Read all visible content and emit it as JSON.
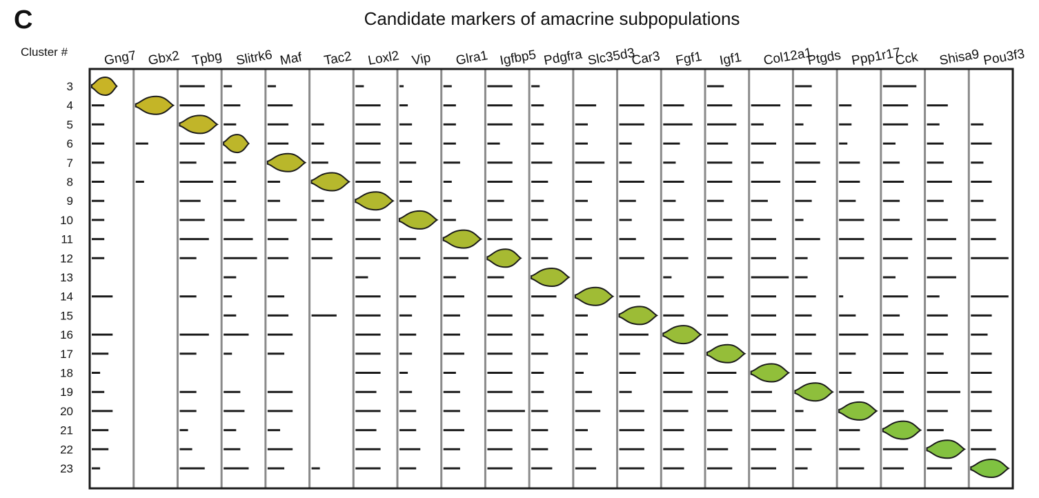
{
  "panel_letter": "C",
  "cluster_heading": "Cluster #",
  "colors": {
    "violin_start": "#c8b426",
    "violin_end": "#7fc241",
    "line": "#1a1a1a",
    "separator": "#8a8a8a",
    "frame": "#1a1a1a"
  },
  "chart_data": {
    "type": "violin",
    "title": "Candidate markers of amacrine subpopulations",
    "genes": [
      "Gng7",
      "Gbx2",
      "Tpbg",
      "Slitrk6",
      "Maf",
      "Tac2",
      "Loxl2",
      "Vip",
      "Glra1",
      "Igfbp5",
      "Pdgfra",
      "Slc35d3",
      "Car3",
      "Fgf1",
      "Igf1",
      "Col12a1",
      "Ptgds",
      "Ppp1r17",
      "Cck",
      "Shisa9",
      "Pou3f3"
    ],
    "clusters": [
      "3",
      "4",
      "5",
      "6",
      "7",
      "8",
      "9",
      "10",
      "11",
      "12",
      "13",
      "14",
      "15",
      "16",
      "17",
      "18",
      "19",
      "20",
      "21",
      "22",
      "23"
    ],
    "expression": [
      [
        0.6,
        0.0,
        0.6,
        0.2,
        0.2,
        0.0,
        0.2,
        0.1,
        0.2,
        0.6,
        0.2,
        0.0,
        0.0,
        0.0,
        0.4,
        0.0,
        0.4,
        0.0,
        0.8,
        0.0,
        0.0
      ],
      [
        0.3,
        0.9,
        0.6,
        0.4,
        0.6,
        0.0,
        0.6,
        0.2,
        0.3,
        0.6,
        0.3,
        0.5,
        0.6,
        0.5,
        0.6,
        0.7,
        0.4,
        0.3,
        0.6,
        0.5,
        0.0
      ],
      [
        0.3,
        0.0,
        0.9,
        0.3,
        0.5,
        0.3,
        0.6,
        0.3,
        0.3,
        0.6,
        0.3,
        0.3,
        0.6,
        0.7,
        0.7,
        0.3,
        0.2,
        0.3,
        0.6,
        0.3,
        0.3
      ],
      [
        0.3,
        0.3,
        0.6,
        0.6,
        0.5,
        0.3,
        0.6,
        0.3,
        0.3,
        0.3,
        0.3,
        0.3,
        0.3,
        0.4,
        0.5,
        0.6,
        0.5,
        0.2,
        0.3,
        0.4,
        0.5
      ],
      [
        0.3,
        0.0,
        0.4,
        0.3,
        0.9,
        0.4,
        0.6,
        0.4,
        0.4,
        0.6,
        0.5,
        0.7,
        0.3,
        0.3,
        0.6,
        0.3,
        0.6,
        0.5,
        0.4,
        0.4,
        0.3
      ],
      [
        0.3,
        0.2,
        0.8,
        0.3,
        0.3,
        0.9,
        0.6,
        0.3,
        0.2,
        0.6,
        0.4,
        0.4,
        0.6,
        0.5,
        0.6,
        0.7,
        0.5,
        0.5,
        0.5,
        0.6,
        0.5
      ],
      [
        0.3,
        0.0,
        0.5,
        0.3,
        0.3,
        0.3,
        0.9,
        0.3,
        0.2,
        0.4,
        0.3,
        0.3,
        0.4,
        0.3,
        0.4,
        0.4,
        0.4,
        0.4,
        0.4,
        0.4,
        0.3
      ],
      [
        0.3,
        0.0,
        0.6,
        0.5,
        0.7,
        0.3,
        0.6,
        0.9,
        0.3,
        0.6,
        0.4,
        0.4,
        0.3,
        0.5,
        0.6,
        0.5,
        0.2,
        0.6,
        0.4,
        0.5,
        0.6
      ],
      [
        0.3,
        0.0,
        0.7,
        0.7,
        0.5,
        0.5,
        0.6,
        0.4,
        0.9,
        0.6,
        0.5,
        0.4,
        0.4,
        0.5,
        0.6,
        0.6,
        0.6,
        0.6,
        0.7,
        0.7,
        0.6
      ],
      [
        0.3,
        0.0,
        0.4,
        0.8,
        0.5,
        0.5,
        0.6,
        0.5,
        0.6,
        0.8,
        0.4,
        0.4,
        0.6,
        0.6,
        0.6,
        0.6,
        0.3,
        0.6,
        0.6,
        0.6,
        0.9
      ],
      [
        0.0,
        0.0,
        0.0,
        0.3,
        0.0,
        0.0,
        0.3,
        0.0,
        0.3,
        0.4,
        0.9,
        0.0,
        0.0,
        0.2,
        0.4,
        0.9,
        0.3,
        0.0,
        0.3,
        0.7,
        0.0
      ],
      [
        0.5,
        0.0,
        0.4,
        0.2,
        0.4,
        0.0,
        0.6,
        0.4,
        0.5,
        0.6,
        0.6,
        0.9,
        0.5,
        0.5,
        0.4,
        0.6,
        0.5,
        0.1,
        0.6,
        0.3,
        0.9
      ],
      [
        0.0,
        0.0,
        0.0,
        0.3,
        0.5,
        0.6,
        0.6,
        0.3,
        0.4,
        0.6,
        0.3,
        0.3,
        0.9,
        0.5,
        0.5,
        0.6,
        0.4,
        0.4,
        0.4,
        0.5,
        0.5
      ],
      [
        0.5,
        0.0,
        0.7,
        0.6,
        0.6,
        0.0,
        0.6,
        0.4,
        0.4,
        0.6,
        0.3,
        0.3,
        0.7,
        0.9,
        0.5,
        0.6,
        0.5,
        0.7,
        0.5,
        0.5,
        0.4
      ],
      [
        0.4,
        0.0,
        0.4,
        0.2,
        0.4,
        0.0,
        0.6,
        0.3,
        0.5,
        0.6,
        0.4,
        0.3,
        0.5,
        0.5,
        0.9,
        0.6,
        0.4,
        0.4,
        0.6,
        0.4,
        0.5
      ],
      [
        0.2,
        0.0,
        0.0,
        0.0,
        0.0,
        0.0,
        0.6,
        0.2,
        0.3,
        0.6,
        0.3,
        0.2,
        0.4,
        0.5,
        0.7,
        0.9,
        0.5,
        0.3,
        0.5,
        0.5,
        0.5
      ],
      [
        0.3,
        0.0,
        0.4,
        0.4,
        0.6,
        0.0,
        0.5,
        0.3,
        0.4,
        0.6,
        0.3,
        0.4,
        0.3,
        0.7,
        0.5,
        0.5,
        0.9,
        0.6,
        0.5,
        0.8,
        0.5
      ],
      [
        0.5,
        0.0,
        0.4,
        0.5,
        0.6,
        0.0,
        0.6,
        0.4,
        0.4,
        0.9,
        0.4,
        0.6,
        0.6,
        0.6,
        0.5,
        0.6,
        0.2,
        0.9,
        0.5,
        0.5,
        0.5
      ],
      [
        0.4,
        0.0,
        0.2,
        0.3,
        0.3,
        0.0,
        0.5,
        0.4,
        0.5,
        0.6,
        0.4,
        0.3,
        0.6,
        0.5,
        0.6,
        0.8,
        0.5,
        0.5,
        0.9,
        0.4,
        0.5
      ],
      [
        0.4,
        0.0,
        0.3,
        0.4,
        0.6,
        0.0,
        0.6,
        0.5,
        0.4,
        0.6,
        0.4,
        0.4,
        0.6,
        0.5,
        0.5,
        0.6,
        0.4,
        0.5,
        0.6,
        0.9,
        0.6
      ],
      [
        0.2,
        0.0,
        0.6,
        0.6,
        0.4,
        0.2,
        0.6,
        0.4,
        0.4,
        0.6,
        0.5,
        0.5,
        0.6,
        0.5,
        0.6,
        0.6,
        0.3,
        0.6,
        0.5,
        0.6,
        0.9
      ]
    ]
  }
}
